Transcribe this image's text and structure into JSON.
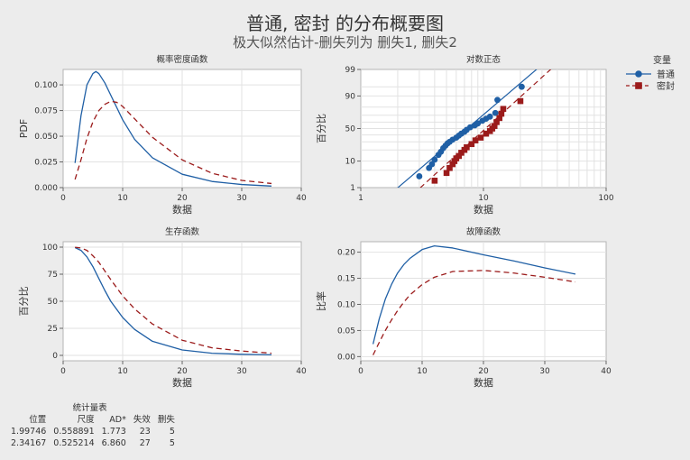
{
  "title": "普通, 密封 的分布概要图",
  "subtitle": "极大似然估计-删失列为 删失1, 删失2",
  "legend": {
    "title": "变量",
    "items": [
      {
        "name": "普通",
        "color": "#1f5fa5",
        "marker": "circle",
        "line": "solid"
      },
      {
        "name": "密封",
        "color": "#9b1b1b",
        "marker": "square",
        "line": "dashed"
      }
    ]
  },
  "chart_data": [
    {
      "type": "line",
      "title": "概率密度函数",
      "xlabel": "数据",
      "ylabel": "PDF",
      "xlim": [
        0,
        40
      ],
      "ylim": [
        0,
        0.115
      ],
      "xticks": [
        0,
        10,
        20,
        30,
        40
      ],
      "yticks": [
        0.0,
        0.025,
        0.05,
        0.075,
        0.1
      ],
      "ytick_labels": [
        "0.000",
        "0.025",
        "0.050",
        "0.075",
        "0.100"
      ],
      "grid": true,
      "series": [
        {
          "name": "普通",
          "x": [
            2,
            3,
            4,
            5,
            5.5,
            6,
            7,
            8,
            10,
            12,
            15,
            20,
            25,
            30,
            35
          ],
          "y": [
            0.024,
            0.07,
            0.1,
            0.111,
            0.113,
            0.111,
            0.102,
            0.09,
            0.066,
            0.047,
            0.029,
            0.013,
            0.006,
            0.003,
            0.0015
          ]
        },
        {
          "name": "密封",
          "x": [
            2,
            3,
            4,
            5,
            6,
            7,
            8,
            9,
            10,
            12,
            15,
            20,
            25,
            30,
            35
          ],
          "y": [
            0.008,
            0.027,
            0.048,
            0.064,
            0.075,
            0.081,
            0.084,
            0.083,
            0.079,
            0.067,
            0.049,
            0.027,
            0.014,
            0.007,
            0.004
          ]
        }
      ]
    },
    {
      "type": "scatter",
      "title": "对数正态",
      "xlabel": "数据",
      "ylabel": "百分比",
      "xscale": "log",
      "yscale": "probability",
      "xlim": [
        1,
        100
      ],
      "ylim": [
        1,
        99
      ],
      "xticks": [
        1,
        10,
        100
      ],
      "yticks": [
        1,
        10,
        50,
        90,
        99
      ],
      "grid": true,
      "series": [
        {
          "name": "普通",
          "x": [
            3.0,
            3.6,
            3.8,
            4.0,
            4.3,
            4.5,
            4.7,
            4.9,
            5.1,
            5.3,
            5.6,
            6.0,
            6.3,
            6.6,
            7.0,
            7.3,
            7.8,
            8.5,
            9.0,
            9.8,
            10.5,
            11.3,
            12.5,
            13.0,
            20.5
          ],
          "y": [
            3,
            6,
            8,
            11,
            15,
            18,
            22,
            25,
            28,
            30,
            33,
            36,
            39,
            42,
            45,
            48,
            52,
            55,
            58,
            62,
            65,
            68,
            73,
            87,
            95
          ]
        },
        {
          "name": "密封",
          "x": [
            4.0,
            5.0,
            5.3,
            5.6,
            5.8,
            6.0,
            6.3,
            6.6,
            7.0,
            7.3,
            8.0,
            8.6,
            9.5,
            10.5,
            11.3,
            11.8,
            12.3,
            12.8,
            13.5,
            14.0,
            14.5,
            20.0
          ],
          "y": [
            2,
            4,
            6,
            8,
            10,
            12,
            14,
            17,
            20,
            23,
            27,
            32,
            36,
            42,
            46,
            50,
            54,
            60,
            66,
            72,
            78,
            86
          ]
        }
      ],
      "fit_lines": [
        {
          "name": "普通",
          "mu": 1.99746,
          "sigma": 0.558891
        },
        {
          "name": "密封",
          "mu": 2.34167,
          "sigma": 0.525214
        }
      ]
    },
    {
      "type": "line",
      "title": "生存函数",
      "xlabel": "数据",
      "ylabel": "百分比",
      "xlim": [
        0,
        40
      ],
      "ylim": [
        -5,
        105
      ],
      "xticks": [
        0,
        10,
        20,
        30,
        40
      ],
      "yticks": [
        0,
        25,
        50,
        75,
        100
      ],
      "grid": true,
      "series": [
        {
          "name": "普通",
          "x": [
            2,
            3,
            4,
            5,
            6,
            7,
            8,
            10,
            12,
            15,
            20,
            25,
            30,
            35
          ],
          "y": [
            99.6,
            97,
            91,
            82,
            71,
            60,
            50,
            35,
            24,
            13,
            5,
            2,
            1,
            0.5
          ]
        },
        {
          "name": "密封",
          "x": [
            2,
            3,
            4,
            5,
            6,
            7,
            8,
            10,
            12,
            15,
            20,
            25,
            30,
            35
          ],
          "y": [
            99.9,
            99.2,
            97,
            92,
            86,
            78,
            70,
            55,
            43,
            29,
            14,
            7,
            4,
            2
          ]
        }
      ]
    },
    {
      "type": "line",
      "title": "故障函数",
      "xlabel": "数据",
      "ylabel": "比率",
      "xlim": [
        0,
        40
      ],
      "ylim": [
        -0.008,
        0.22
      ],
      "xticks": [
        0,
        10,
        20,
        30,
        40
      ],
      "yticks": [
        0.0,
        0.05,
        0.1,
        0.15,
        0.2
      ],
      "ytick_labels": [
        "0.00",
        "0.05",
        "0.10",
        "0.15",
        "0.20"
      ],
      "grid": true,
      "series": [
        {
          "name": "普通",
          "x": [
            2,
            3,
            4,
            5,
            6,
            7,
            8,
            10,
            12,
            15,
            20,
            25,
            30,
            35
          ],
          "y": [
            0.024,
            0.072,
            0.11,
            0.138,
            0.16,
            0.176,
            0.188,
            0.205,
            0.212,
            0.208,
            0.195,
            0.183,
            0.17,
            0.158
          ]
        },
        {
          "name": "密封",
          "x": [
            2,
            3,
            4,
            5,
            6,
            7,
            8,
            10,
            12,
            15,
            20,
            25,
            30,
            35
          ],
          "y": [
            0.003,
            0.027,
            0.05,
            0.07,
            0.088,
            0.104,
            0.118,
            0.138,
            0.152,
            0.163,
            0.165,
            0.16,
            0.152,
            0.143
          ]
        }
      ]
    }
  ],
  "stats_table": {
    "caption": "统计量表",
    "headers": [
      "位置",
      "尺度",
      "AD*",
      "失效",
      "删失"
    ],
    "rows": [
      [
        "1.99746",
        "0.558891",
        "1.773",
        "23",
        "5"
      ],
      [
        "2.34167",
        "0.525214",
        "6.860",
        "27",
        "5"
      ]
    ]
  }
}
